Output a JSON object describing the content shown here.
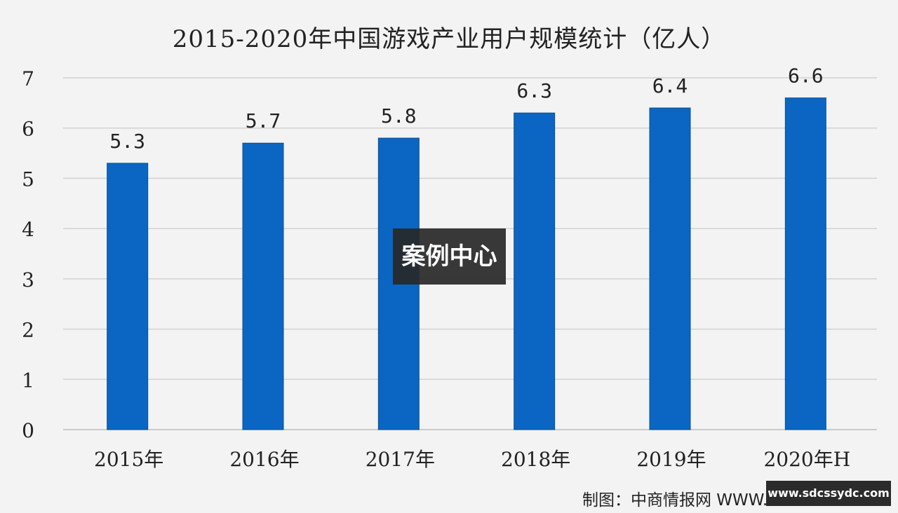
{
  "chart_data": {
    "type": "bar",
    "title": "2015-2020年中国游戏产业用户规模统计（亿人）",
    "categories": [
      "2015年",
      "2016年",
      "2017年",
      "2018年",
      "2019年",
      "2020年H"
    ],
    "values": [
      5.3,
      5.7,
      5.8,
      6.3,
      6.4,
      6.6
    ],
    "value_labels": [
      "5.3",
      "5.7",
      "5.8",
      "6.3",
      "6.4",
      "6.6"
    ],
    "ylim": [
      0,
      7
    ],
    "yticks": [
      0,
      1,
      2,
      3,
      4,
      5,
      6,
      7
    ],
    "grid": true,
    "bar_color": "#0a66c2",
    "xlabel": "",
    "ylabel": ""
  },
  "overlay": {
    "label": "案例中心"
  },
  "footer": {
    "credit": "制图：中商情报网  WWW.ASKCI.COM",
    "url": "www.sdcssydc.com"
  },
  "colors": {
    "background": "#f3f3f3",
    "grid": "#d2d2d2",
    "bar": "#0a66c2",
    "text": "#222222"
  }
}
